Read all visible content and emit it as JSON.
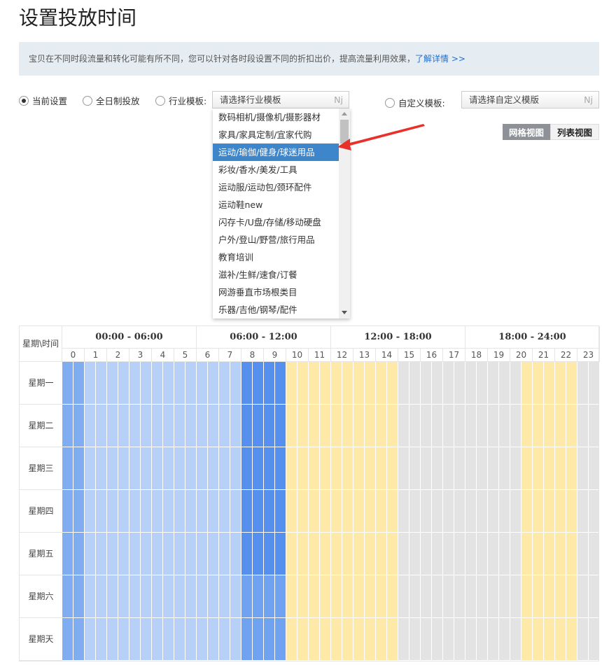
{
  "title": "设置投放时间",
  "info": {
    "text": "宝贝在不同时段流量和转化可能有所不同，您可以针对各时段设置不同的折扣出价，提高流量利用效果，",
    "link": "了解详情 >>"
  },
  "options": {
    "current": "当前设置",
    "full_day": "全日制投放",
    "industry": "行业模板:",
    "custom": "自定义模板:",
    "selected": "current"
  },
  "industry_select": {
    "placeholder": "请选择行业模板",
    "suffix": "Nj"
  },
  "custom_select": {
    "placeholder": "请选择自定义模版",
    "suffix": "Nj"
  },
  "dropdown": {
    "selected_index": 2,
    "items": [
      "数码相机/摄像机/摄影器材",
      "家具/家具定制/宜家代购",
      "运动/瑜伽/健身/球迷用品",
      "彩妆/香水/美发/工具",
      "运动服/运动包/颈环配件",
      "运动鞋new",
      "闪存卡/U盘/存储/移动硬盘",
      "户外/登山/野营/旅行用品",
      "教育培训",
      "滋补/生鲜/速食/订餐",
      "网游垂直市场根类目",
      "乐器/吉他/钢琴/配件"
    ]
  },
  "view": {
    "grid": "网格视图",
    "list": "列表视图",
    "active": "grid"
  },
  "schedule": {
    "corner": "星期\\时间",
    "groups": [
      "00:00 - 06:00",
      "06:00 - 12:00",
      "12:00 - 18:00",
      "18:00 - 24:00"
    ],
    "hours": [
      "0",
      "1",
      "2",
      "3",
      "4",
      "5",
      "6",
      "7",
      "8",
      "9",
      "10",
      "11",
      "12",
      "13",
      "14",
      "15",
      "16",
      "17",
      "18",
      "19",
      "20",
      "21",
      "22",
      "23"
    ],
    "days": [
      "星期一",
      "星期二",
      "星期三",
      "星期四",
      "星期五",
      "星期六",
      "星期天"
    ],
    "level_colors": {
      "a": "#80acf2",
      "b": "#b7d0f8",
      "c": "#5590ee",
      "d": "#6fa2f0",
      "y": "#feeaa6",
      "g": "#e3e3e3"
    },
    "half_hour_levels": [
      "aabbbbbbbbbbbbbbccccyyyyyyyyyygggggggggggyyyyygg",
      "aabbbbbbbbbbbbbbccccyyyyyyyyyygggggggggggyyyyygg",
      "aabbbbbbbbbbbbbbccccyyyyyyyyyygggggggggggyyyyygg",
      "aabbbbbbbbbbbbbbccccyyyyyyyyyygggggggggggyyyyygg",
      "aabbbbbbbbbbbbbbccccyyyyyyyyyygggggggggggyyyyygg",
      "aabbbbbbbbbbbbbbddddyyyyyyyyyygggggggggggyyyyygg",
      "aabbbbbbbbbbbbbbddddyyyyyyyyyygggggggggggyyyyygg"
    ]
  },
  "annotation_color": "#e8312a"
}
